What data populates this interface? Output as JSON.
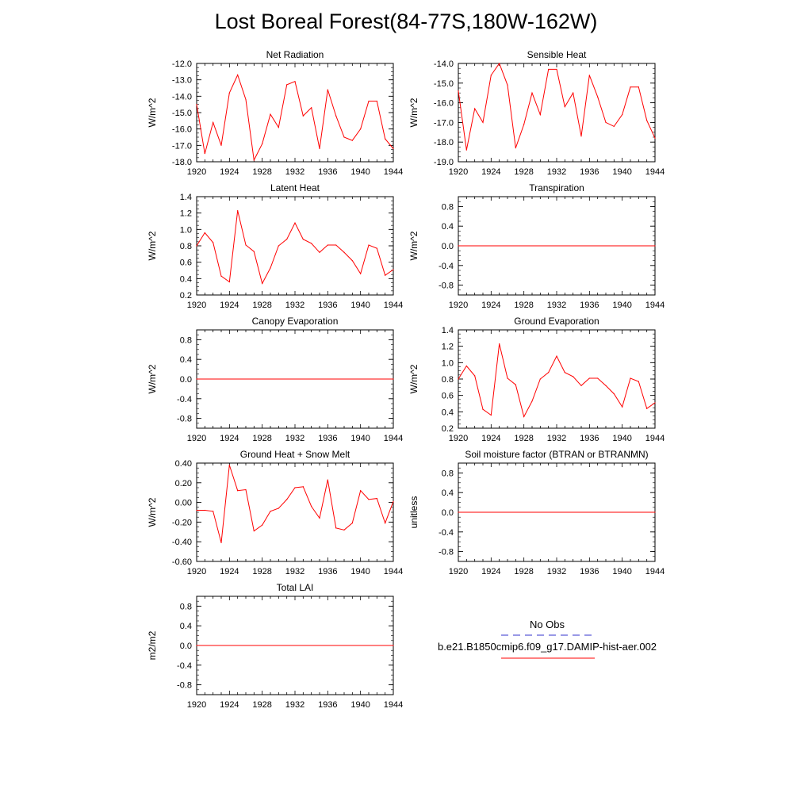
{
  "title": "Lost Boreal Forest(84-77S,180W-162W)",
  "colors": {
    "model_line": "#ff0000",
    "obs_line": "#3333cc",
    "axis": "#000000"
  },
  "legend": {
    "obs_label": "No Obs",
    "model_label": "b.e21.B1850cmip6.f09_g17.DAMIP-hist-aer.002"
  },
  "chart_data": [
    {
      "type": "line",
      "title": "Net Radiation",
      "ylabel": "W/m^2",
      "x": [
        1920,
        1921,
        1922,
        1923,
        1924,
        1925,
        1926,
        1927,
        1928,
        1929,
        1930,
        1931,
        1932,
        1933,
        1934,
        1935,
        1936,
        1937,
        1938,
        1939,
        1940,
        1941,
        1942,
        1943,
        1944
      ],
      "values": [
        -14.5,
        -17.5,
        -15.6,
        -17.0,
        -13.8,
        -12.7,
        -14.2,
        -17.9,
        -16.9,
        -15.1,
        -15.9,
        -13.3,
        -13.1,
        -15.2,
        -14.7,
        -17.2,
        -13.6,
        -15.2,
        -16.5,
        -16.7,
        -16.0,
        -14.3,
        -14.3,
        -16.6,
        -17.2
      ],
      "ylim": [
        -18.0,
        -12.0
      ],
      "yticks": [
        "-18.0",
        "-17.0",
        "-16.0",
        "-15.0",
        "-14.0",
        "-13.0",
        "-12.0"
      ],
      "xticks": [
        "1920",
        "1924",
        "1928",
        "1932",
        "1936",
        "1940",
        "1944"
      ]
    },
    {
      "type": "line",
      "title": "Sensible Heat",
      "ylabel": "W/m^2",
      "x": [
        1920,
        1921,
        1922,
        1923,
        1924,
        1925,
        1926,
        1927,
        1928,
        1929,
        1930,
        1931,
        1932,
        1933,
        1934,
        1935,
        1936,
        1937,
        1938,
        1939,
        1940,
        1941,
        1942,
        1943,
        1944
      ],
      "values": [
        -15.4,
        -18.4,
        -16.3,
        -17.0,
        -14.6,
        -14.0,
        -15.1,
        -18.3,
        -17.1,
        -15.5,
        -16.6,
        -14.3,
        -14.3,
        -16.2,
        -15.5,
        -17.7,
        -14.6,
        -15.7,
        -17.0,
        -17.2,
        -16.6,
        -15.2,
        -15.2,
        -16.9,
        -17.8
      ],
      "ylim": [
        -19.0,
        -14.0
      ],
      "yticks": [
        "-19.0",
        "-18.0",
        "-17.0",
        "-16.0",
        "-15.0",
        "-14.0"
      ],
      "xticks": [
        "1920",
        "1924",
        "1928",
        "1932",
        "1936",
        "1940",
        "1944"
      ]
    },
    {
      "type": "line",
      "title": "Latent Heat",
      "ylabel": "W/m^2",
      "x": [
        1920,
        1921,
        1922,
        1923,
        1924,
        1925,
        1926,
        1927,
        1928,
        1929,
        1930,
        1931,
        1932,
        1933,
        1934,
        1935,
        1936,
        1937,
        1938,
        1939,
        1940,
        1941,
        1942,
        1943,
        1944
      ],
      "values": [
        0.8,
        0.96,
        0.84,
        0.43,
        0.36,
        1.23,
        0.81,
        0.73,
        0.34,
        0.53,
        0.8,
        0.88,
        1.08,
        0.88,
        0.83,
        0.72,
        0.81,
        0.81,
        0.72,
        0.62,
        0.46,
        0.81,
        0.77,
        0.44,
        0.51
      ],
      "ylim": [
        0.2,
        1.4
      ],
      "yticks": [
        "0.2",
        "0.4",
        "0.6",
        "0.8",
        "1.0",
        "1.2",
        "1.4"
      ],
      "xticks": [
        "1920",
        "1924",
        "1928",
        "1932",
        "1936",
        "1940",
        "1944"
      ]
    },
    {
      "type": "line",
      "title": "Transpiration",
      "ylabel": "W/m^2",
      "x": [
        1920,
        1944
      ],
      "values": [
        0.0,
        0.0
      ],
      "ylim": [
        -1.0,
        1.0
      ],
      "yticks": [
        "-0.8",
        "-0.4",
        "0.0",
        "0.4",
        "0.8"
      ],
      "ytick_values": [
        -0.8,
        -0.4,
        0.0,
        0.4,
        0.8
      ],
      "xticks": [
        "1920",
        "1924",
        "1928",
        "1932",
        "1936",
        "1940",
        "1944"
      ]
    },
    {
      "type": "line",
      "title": "Canopy Evaporation",
      "ylabel": "W/m^2",
      "x": [
        1920,
        1944
      ],
      "values": [
        0.0,
        0.0
      ],
      "ylim": [
        -1.0,
        1.0
      ],
      "yticks": [
        "-0.8",
        "-0.4",
        "0.0",
        "0.4",
        "0.8"
      ],
      "ytick_values": [
        -0.8,
        -0.4,
        0.0,
        0.4,
        0.8
      ],
      "xticks": [
        "1920",
        "1924",
        "1928",
        "1932",
        "1936",
        "1940",
        "1944"
      ]
    },
    {
      "type": "line",
      "title": "Ground Evaporation",
      "ylabel": "W/m^2",
      "x": [
        1920,
        1921,
        1922,
        1923,
        1924,
        1925,
        1926,
        1927,
        1928,
        1929,
        1930,
        1931,
        1932,
        1933,
        1934,
        1935,
        1936,
        1937,
        1938,
        1939,
        1940,
        1941,
        1942,
        1943,
        1944
      ],
      "values": [
        0.8,
        0.96,
        0.84,
        0.43,
        0.36,
        1.23,
        0.81,
        0.73,
        0.34,
        0.53,
        0.8,
        0.88,
        1.08,
        0.88,
        0.83,
        0.72,
        0.81,
        0.81,
        0.72,
        0.62,
        0.46,
        0.81,
        0.77,
        0.44,
        0.51
      ],
      "ylim": [
        0.2,
        1.4
      ],
      "yticks": [
        "0.2",
        "0.4",
        "0.6",
        "0.8",
        "1.0",
        "1.2",
        "1.4"
      ],
      "xticks": [
        "1920",
        "1924",
        "1928",
        "1932",
        "1936",
        "1940",
        "1944"
      ]
    },
    {
      "type": "line",
      "title": "Ground Heat + Snow Melt",
      "ylabel": "W/m^2",
      "x": [
        1920,
        1921,
        1922,
        1923,
        1924,
        1925,
        1926,
        1927,
        1928,
        1929,
        1930,
        1931,
        1932,
        1933,
        1934,
        1935,
        1936,
        1937,
        1938,
        1939,
        1940,
        1941,
        1942,
        1943,
        1944
      ],
      "values": [
        -0.08,
        -0.08,
        -0.09,
        -0.41,
        0.38,
        0.12,
        0.13,
        -0.29,
        -0.23,
        -0.09,
        -0.06,
        0.03,
        0.15,
        0.16,
        -0.04,
        -0.16,
        0.23,
        -0.26,
        -0.28,
        -0.21,
        0.12,
        0.03,
        0.04,
        -0.21,
        0.01
      ],
      "ylim": [
        -0.6,
        0.4
      ],
      "yticks": [
        "-0.60",
        "-0.40",
        "-0.20",
        "0.00",
        "0.20",
        "0.40"
      ],
      "xticks": [
        "1920",
        "1924",
        "1928",
        "1932",
        "1936",
        "1940",
        "1944"
      ]
    },
    {
      "type": "line",
      "title": "Soil moisture factor (BTRAN or BTRANMN)",
      "ylabel": "unitless",
      "x": [
        1920,
        1944
      ],
      "values": [
        0.0,
        0.0
      ],
      "ylim": [
        -1.0,
        1.0
      ],
      "yticks": [
        "-0.8",
        "-0.4",
        "0.0",
        "0.4",
        "0.8"
      ],
      "ytick_values": [
        -0.8,
        -0.4,
        0.0,
        0.4,
        0.8
      ],
      "xticks": [
        "1920",
        "1924",
        "1928",
        "1932",
        "1936",
        "1940",
        "1944"
      ]
    },
    {
      "type": "line",
      "title": "Total LAI",
      "ylabel": "m2/m2",
      "x": [
        1920,
        1944
      ],
      "values": [
        0.0,
        0.0
      ],
      "ylim": [
        -1.0,
        1.0
      ],
      "yticks": [
        "-0.8",
        "-0.4",
        "0.0",
        "0.4",
        "0.8"
      ],
      "ytick_values": [
        -0.8,
        -0.4,
        0.0,
        0.4,
        0.8
      ],
      "xticks": [
        "1920",
        "1924",
        "1928",
        "1932",
        "1936",
        "1940",
        "1944"
      ]
    }
  ]
}
